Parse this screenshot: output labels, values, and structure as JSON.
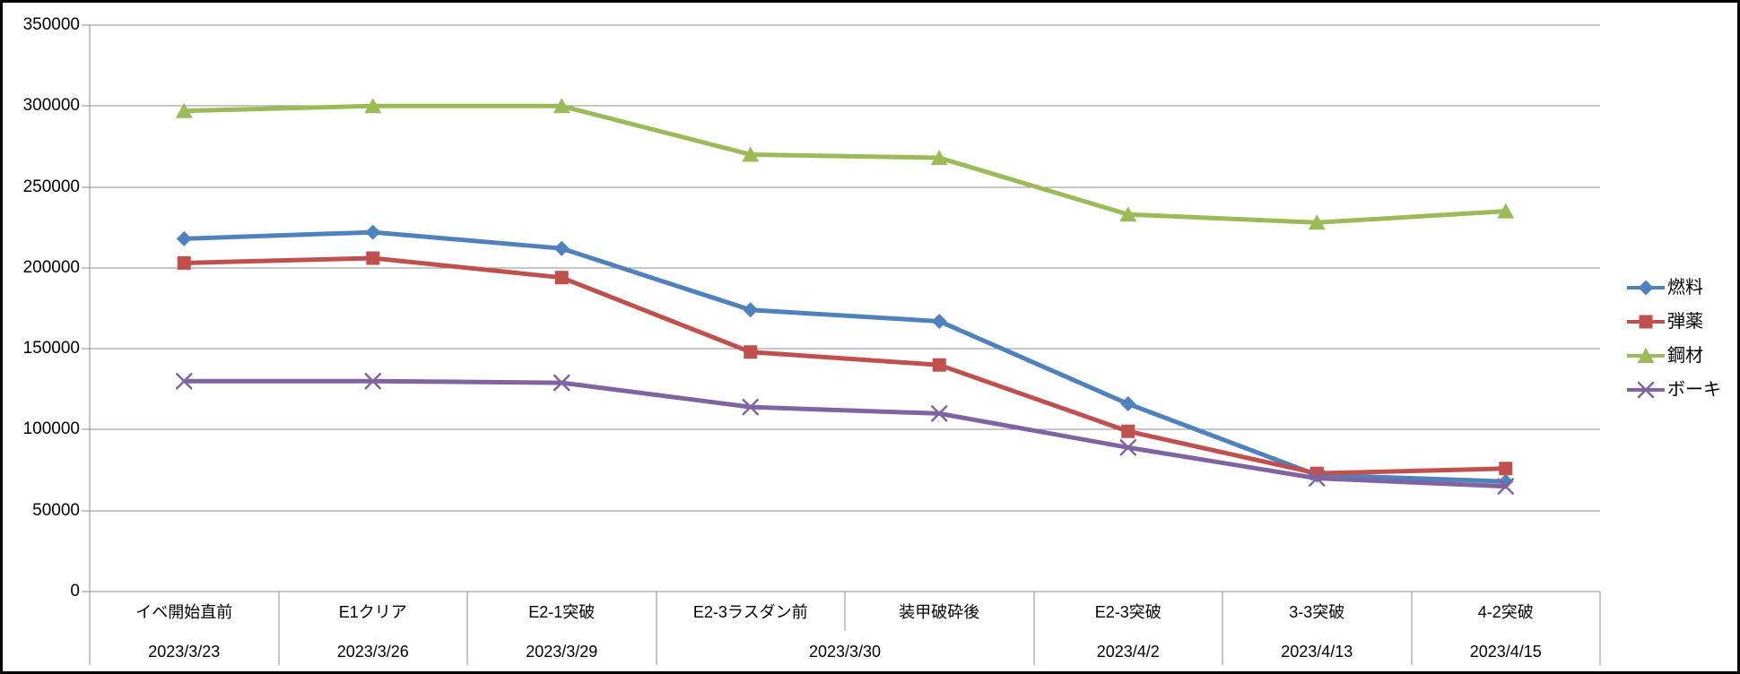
{
  "chart_data": {
    "type": "line",
    "title": "",
    "xlabel": "",
    "ylabel": "",
    "background_color": "#FFFFFF",
    "frame_border_color": "#000000",
    "gridline_color": "#8C8C8C",
    "axis_color": "#8C8C8C",
    "text_color": "#000000",
    "grid": true,
    "legend_position": "right",
    "y_axis": {
      "min": 0,
      "max": 350000,
      "step": 50000,
      "tick_labels": [
        "0",
        "50000",
        "100000",
        "150000",
        "200000",
        "250000",
        "300000",
        "350000"
      ]
    },
    "x_axis": {
      "categories": [
        "イベ開始直前",
        "E1クリア",
        "E2-1突破",
        "E2-3ラスダン前",
        "装甲破砕後",
        "E2-3突破",
        "3-3突破",
        "4-2突破"
      ],
      "date_groups": [
        {
          "label": "2023/3/23",
          "span": 1
        },
        {
          "label": "2023/3/26",
          "span": 1
        },
        {
          "label": "2023/3/29",
          "span": 1
        },
        {
          "label": "2023/3/30",
          "span": 2
        },
        {
          "label": "2023/4/2",
          "span": 1
        },
        {
          "label": "2023/4/13",
          "span": 1
        },
        {
          "label": "2023/4/15",
          "span": 1
        }
      ]
    },
    "series": [
      {
        "name": "燃料",
        "id": "fuel",
        "color": "#4F81BD",
        "marker": "diamond",
        "values": [
          218000,
          222000,
          212000,
          174000,
          167000,
          116000,
          72000,
          68000
        ]
      },
      {
        "name": "弾薬",
        "id": "ammo",
        "color": "#C0504D",
        "marker": "square",
        "values": [
          203000,
          206000,
          194000,
          148000,
          140000,
          99000,
          73000,
          76000
        ]
      },
      {
        "name": "鋼材",
        "id": "steel",
        "color": "#9BBB59",
        "marker": "triangle",
        "values": [
          297000,
          300000,
          300000,
          270000,
          268000,
          233000,
          228000,
          235000
        ]
      },
      {
        "name": "ボーキ",
        "id": "bauxite",
        "color": "#8064A2",
        "marker": "x-cross",
        "values": [
          130000,
          130000,
          129000,
          114000,
          110000,
          89000,
          70000,
          65000
        ]
      }
    ]
  }
}
